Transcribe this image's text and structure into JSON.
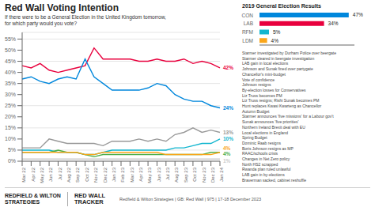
{
  "chart_data": [
    {
      "type": "line",
      "title": "Red Wall Voting Intention",
      "subtitle": "If there were to be a General Election in the United Kingdom tomorrow,\nfor which party would you vote?",
      "categories": [
        "Mar 22",
        "Apr 22",
        "May 22",
        "Jun 22",
        "Jul 22",
        "Aug 22",
        "Sep 22",
        "Oct 22",
        "Nov 22",
        "Dec 22",
        "Jan 23",
        "Feb 23",
        "Mar 23",
        "Apr 23",
        "May 23",
        "Jun 23",
        "Jul 23",
        "Aug 23",
        "Sep 23",
        "Oct 23",
        "Nov 23",
        "Dec 23",
        "Jan 24"
      ],
      "series": [
        {
          "color": "#e8003d",
          "values": [
            43,
            42,
            44,
            41,
            40,
            41,
            42,
            43,
            51,
            46,
            46,
            46,
            46,
            45,
            45,
            46,
            45,
            45,
            46,
            44,
            45,
            44,
            42
          ],
          "value_labels": [
            null,
            null,
            null,
            null,
            null,
            null,
            null,
            null,
            null,
            null,
            null,
            null,
            null,
            null,
            null,
            null,
            null,
            null,
            null,
            null,
            null,
            null,
            "42%"
          ]
        },
        {
          "color": "#0087dc",
          "values": [
            37,
            38,
            36,
            35,
            37,
            38,
            37,
            46,
            38,
            35,
            32,
            32,
            32,
            32,
            33,
            35,
            34,
            30,
            28,
            27,
            27,
            25,
            24
          ],
          "value_labels": [
            null,
            null,
            null,
            null,
            null,
            null,
            null,
            null,
            null,
            null,
            null,
            null,
            null,
            null,
            null,
            null,
            null,
            null,
            null,
            null,
            null,
            null,
            "24%"
          ]
        },
        {
          "color": "#12b6cf",
          "values": [
            5,
            5,
            5,
            5,
            4,
            4,
            4,
            3,
            3,
            4,
            5,
            5,
            5,
            5,
            5,
            5,
            5,
            6,
            6,
            7,
            8,
            8,
            10
          ],
          "value_labels": [
            null,
            null,
            null,
            null,
            null,
            null,
            null,
            null,
            null,
            null,
            null,
            null,
            null,
            null,
            null,
            null,
            null,
            null,
            null,
            null,
            null,
            null,
            "10%"
          ]
        },
        {
          "color": "#4daf4a",
          "values": [
            4,
            4,
            4,
            4,
            5,
            4,
            4,
            3,
            2,
            3,
            3,
            3,
            3,
            3,
            3,
            3,
            3,
            3,
            3,
            3,
            3,
            4,
            4
          ],
          "value_labels": [
            null,
            null,
            null,
            null,
            null,
            null,
            null,
            null,
            null,
            null,
            null,
            null,
            null,
            null,
            null,
            null,
            null,
            null,
            null,
            null,
            null,
            null,
            "4%"
          ]
        },
        {
          "color": "#faa61a",
          "values": [
            4,
            4,
            4,
            4,
            4,
            4,
            4,
            3,
            3,
            4,
            4,
            4,
            4,
            4,
            4,
            4,
            3,
            3,
            3,
            3,
            3,
            3,
            4
          ],
          "value_labels": [
            null,
            null,
            null,
            null,
            null,
            null,
            null,
            null,
            null,
            null,
            null,
            null,
            null,
            null,
            null,
            null,
            null,
            null,
            null,
            null,
            null,
            null,
            "4%"
          ]
        },
        {
          "color": "#cccccc",
          "values": [
            1,
            1,
            1,
            1,
            1,
            1,
            1,
            1,
            1,
            1,
            1,
            1,
            1,
            1,
            1,
            1,
            1,
            1,
            1,
            1,
            1,
            1,
            1
          ],
          "value_labels": [
            null,
            null,
            null,
            null,
            null,
            null,
            null,
            null,
            null,
            null,
            null,
            null,
            null,
            null,
            null,
            null,
            null,
            null,
            null,
            null,
            null,
            null,
            "1%"
          ]
        },
        {
          "color": "#999999",
          "values": [
            6,
            6,
            6,
            10,
            9,
            8,
            8,
            8,
            8,
            7,
            9,
            9,
            9,
            10,
            9,
            10,
            9,
            12,
            13,
            15,
            13,
            14,
            13
          ],
          "value_labels": [
            null,
            null,
            null,
            null,
            null,
            null,
            null,
            null,
            null,
            null,
            null,
            null,
            null,
            null,
            null,
            null,
            null,
            null,
            null,
            null,
            null,
            null,
            "13%"
          ]
        }
      ],
      "ylim": [
        0,
        58
      ],
      "yticks": [
        {
          "value": 0,
          "label": "0%"
        },
        {
          "value": 5,
          "label": "5%"
        },
        {
          "value": 10,
          "label": "10%"
        },
        {
          "value": 15,
          "label": "15%"
        },
        {
          "value": 20,
          "label": "20%"
        },
        {
          "value": 25,
          "label": "25%"
        },
        {
          "value": 30,
          "label": "30%"
        },
        {
          "value": 35,
          "label": "35%"
        },
        {
          "value": 40,
          "label": "40%"
        },
        {
          "value": 45,
          "label": "45%"
        },
        {
          "value": 50,
          "label": "50%"
        },
        {
          "value": 55,
          "label": "55%"
        }
      ],
      "grid": true,
      "annotations": [
        "Starmer investigated by\nDurham Police over beergate",
        "Starmer cleared in\nbeergate investigation",
        "LAB gain in\nlocal elections",
        "Johnson and\nSunak fined over\npartygate",
        "Chancellor's\nmini-budget",
        "Vote of\nconfidence",
        "Johnson\nresigns",
        "By-election\nlosses for\nConservatives",
        "Liz Truss\nbecomes PM",
        "Liz Truss resigns;\nRishi Sunak\nbecomes PM",
        "Hunt replaces\nKwasi Kwarteng\nas Chancellor",
        "Autumn\nBudget",
        "Starmer announces\n'five missions' for\na Labour gov't",
        "Sunak announces\n'five priorities'",
        "Northern Ireland\nBrexit deal\nwith EU",
        "Local elections\nin England",
        "Spring\nBudget",
        "Dominic\nRaab\nresigns",
        "Boris Johnson\nresigns as MP",
        "RAAC/schools\ncrisis",
        "Changes in\nNet Zero\npolicy",
        "North HS2\nscrapped",
        "Rwanda plan\nruled unlawful",
        "LAB gain in\nby-elections",
        "Braverman\nsacked,\ncabinet\nreshuffle"
      ],
      "footer": [
        "REDFIELD & WILTON\nSTRATEGIES",
        "RED WALL\nTRACKER",
        "Redfield & Wilton Strategies | GB: Red Wall | 975 | 17-18 December 2023"
      ]
    },
    {
      "type": "bar",
      "orientation": "horizontal",
      "title": "2019 General Election Results",
      "categories": [
        "CON",
        "LAB",
        "RFM",
        "LDM"
      ],
      "values": [
        47,
        34,
        5,
        4
      ],
      "value_labels": [
        "47%",
        "34%",
        "5%",
        "4%"
      ],
      "colors": [
        "#0087dc",
        "#e8003d",
        "#12b6cf",
        "#faa61a"
      ],
      "xlim": [
        0,
        50
      ],
      "tick_labels": "y"
    }
  ]
}
